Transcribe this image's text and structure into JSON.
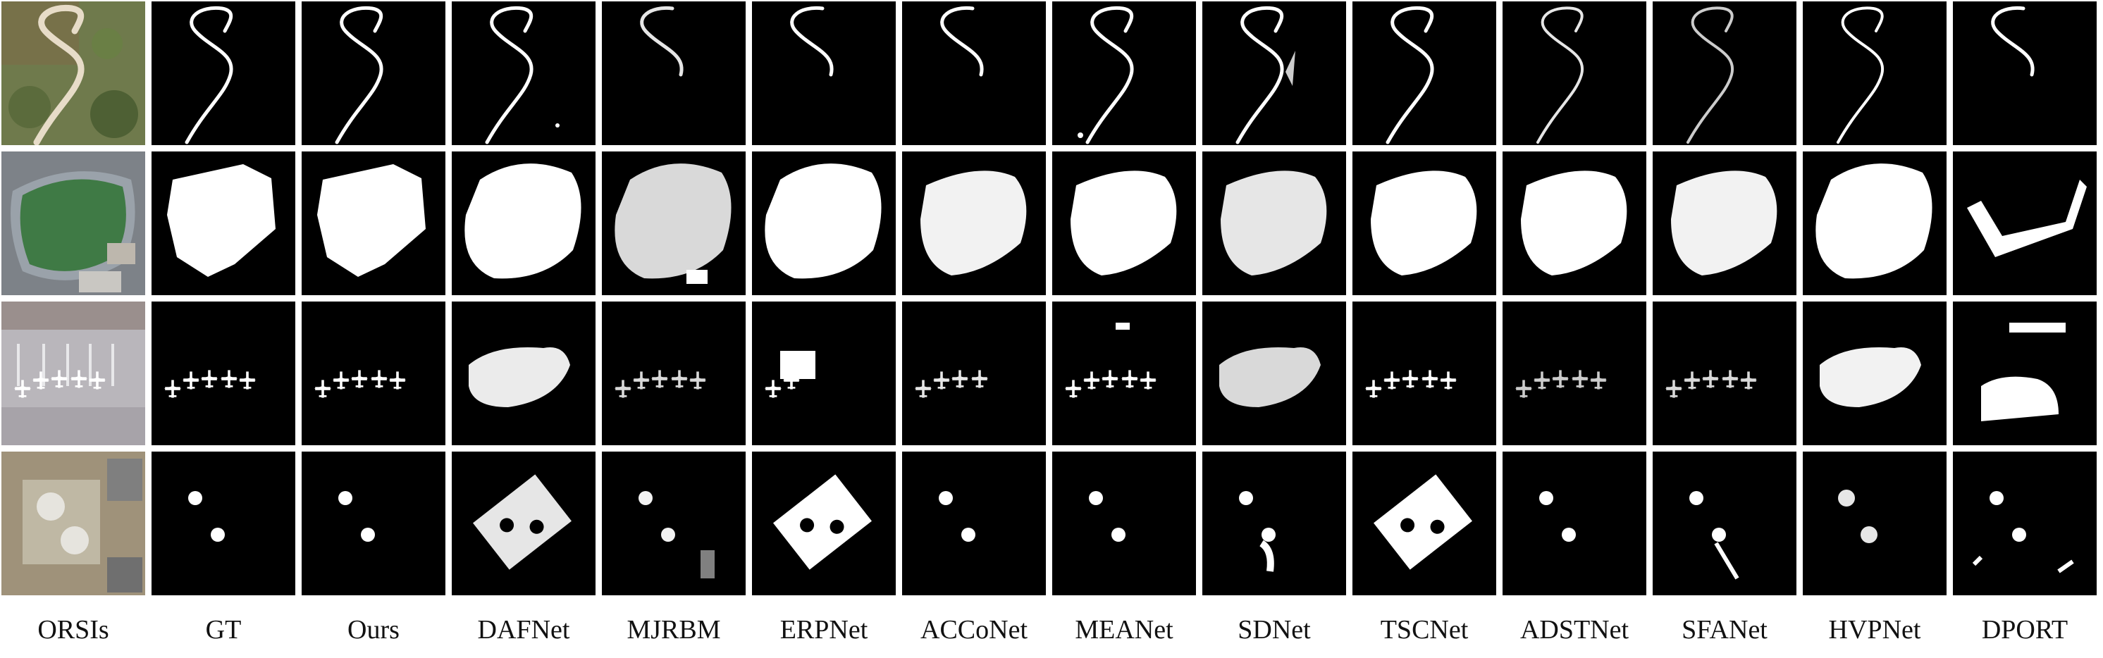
{
  "columns": [
    {
      "label": "ORSIs"
    },
    {
      "label": "GT"
    },
    {
      "label": "Ours"
    },
    {
      "label": "DAFNet"
    },
    {
      "label": "MJRBM"
    },
    {
      "label": "ERPNet"
    },
    {
      "label": "ACCoNet"
    },
    {
      "label": "MEANet"
    },
    {
      "label": "SDNet"
    },
    {
      "label": "TSCNet"
    },
    {
      "label": "ADSTNet"
    },
    {
      "label": "SFANet"
    },
    {
      "label": "HVPNet"
    },
    {
      "label": "DPORT"
    }
  ],
  "rows": [
    {
      "scene": "road"
    },
    {
      "scene": "stadium"
    },
    {
      "scene": "airplanes"
    },
    {
      "scene": "storage-tanks"
    }
  ]
}
